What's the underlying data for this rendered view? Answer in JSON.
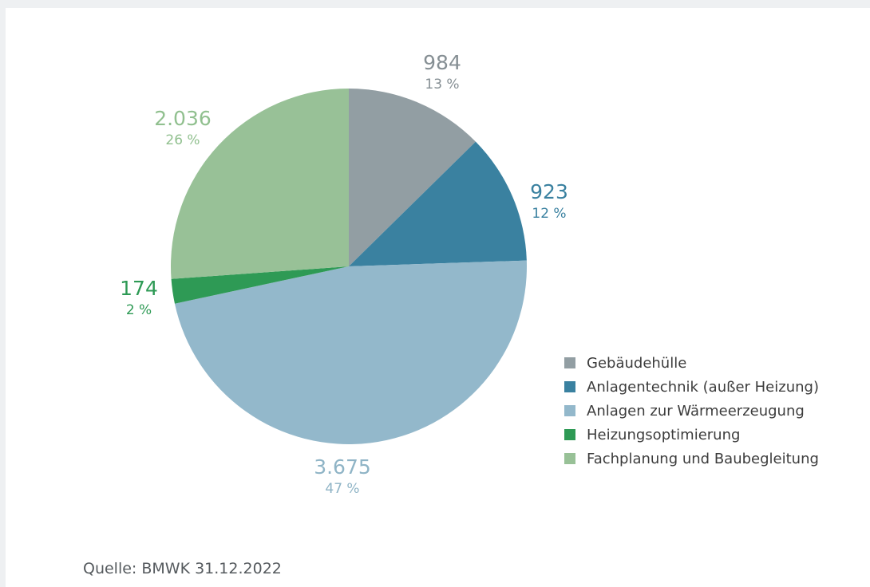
{
  "chart_data": {
    "type": "pie",
    "slices": [
      {
        "label": "Gebäudehülle",
        "value": 984,
        "value_text": "984",
        "percent_text": "13 %",
        "color": "#929ea3"
      },
      {
        "label": "Anlagentechnik (außer Heizung)",
        "value": 923,
        "value_text": "923",
        "percent_text": "12 %",
        "color": "#3a81a0"
      },
      {
        "label": "Anlagen zur Wärmeerzeugung",
        "value": 3675,
        "value_text": "3.675",
        "percent_text": "47 %",
        "color": "#93b8cb"
      },
      {
        "label": "Heizungsoptimierung",
        "value": 174,
        "value_text": "174",
        "percent_text": "2 %",
        "color": "#2e9a55"
      },
      {
        "label": "Fachplanung und Baubegleitung",
        "value": 2036,
        "value_text": "2.036",
        "percent_text": "26 %",
        "color": "#98c197"
      }
    ],
    "label_colors": [
      "#868f94",
      "#3a81a0",
      "#8fb4c6",
      "#2e9a55",
      "#91c08f"
    ],
    "legend_position": "right"
  },
  "source": "Quelle: BMWK 31.12.2022"
}
